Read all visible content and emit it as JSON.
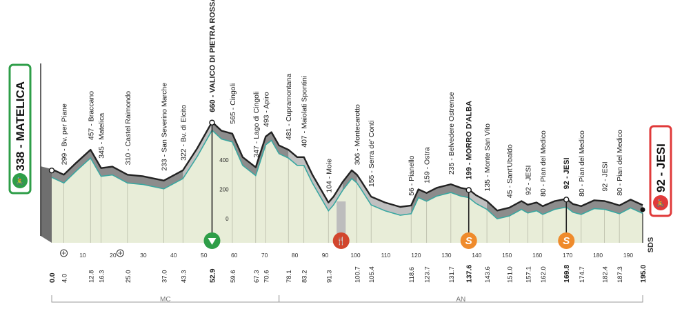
{
  "chart_data": {
    "type": "area",
    "start": {
      "altitude": "338",
      "name": "MATELICA",
      "label": "338 - MATELICA",
      "color": "#2e9e48"
    },
    "finish": {
      "altitude": "92",
      "name": "JESI",
      "label": "92 - JESI",
      "color": "#e03a3a"
    },
    "waypoints": [
      {
        "label": "299 - Bv. per Piane",
        "km": 4.0,
        "km_label": "4.0",
        "alt": 299,
        "bold": false
      },
      {
        "label": "457 - Braccano",
        "km": 12.8,
        "km_label": "12.8",
        "alt": 457,
        "bold": false
      },
      {
        "label": "345 - Matelica",
        "km": 16.3,
        "km_label": "16.3",
        "alt": 345,
        "bold": false
      },
      {
        "label": "310 - Castel Raimondo",
        "km": 25.0,
        "km_label": "25.0",
        "alt": 310,
        "bold": false
      },
      {
        "label": "233 - San Severino Marche",
        "km": 37.0,
        "km_label": "37.0",
        "alt": 233,
        "bold": false
      },
      {
        "label": "322 - Bv. di Elcito",
        "km": 43.3,
        "km_label": "43.3",
        "alt": 322,
        "bold": false
      },
      {
        "label": "660 - VALICO DI PIETRA ROSSA",
        "km": 52.9,
        "km_label": "52.9",
        "alt": 660,
        "bold": true
      },
      {
        "label": "565 - Cingoli",
        "km": 59.6,
        "km_label": "59.6",
        "alt": 565,
        "bold": false
      },
      {
        "label": "347 - Lago di Cingoli",
        "km": 67.3,
        "km_label": "67.3",
        "alt": 347,
        "bold": false
      },
      {
        "label": "493 - Apiro",
        "km": 70.6,
        "km_label": "70.6",
        "alt": 493,
        "bold": false
      },
      {
        "label": "481 - Cupramontana",
        "km": 78.1,
        "km_label": "78.1",
        "alt": 481,
        "bold": false
      },
      {
        "label": "407 - Maiolati Spontini",
        "km": 83.2,
        "km_label": "83.2",
        "alt": 407,
        "bold": false
      },
      {
        "label": "104 - Moie",
        "km": 91.3,
        "km_label": "91.3",
        "alt": 104,
        "bold": false
      },
      {
        "label": "306 - Montecarotto",
        "km": 100.7,
        "km_label": "100.7",
        "alt": 306,
        "bold": false
      },
      {
        "label": "155 - Serra de' Conti",
        "km": 105.4,
        "km_label": "105.4",
        "alt": 155,
        "bold": false
      },
      {
        "label": "56 - Pianello",
        "km": 118.6,
        "km_label": "118.6",
        "alt": 56,
        "bold": false
      },
      {
        "label": "159 - Ostra",
        "km": 123.7,
        "km_label": "123.7",
        "alt": 159,
        "bold": false
      },
      {
        "label": "235 - Belvedere Ostrense",
        "km": 131.7,
        "km_label": "131.7",
        "alt": 235,
        "bold": false
      },
      {
        "label": "199 - MORRO D'ALBA",
        "km": 137.6,
        "km_label": "137.6",
        "alt": 199,
        "bold": true
      },
      {
        "label": "135 - Monte San Vito",
        "km": 143.6,
        "km_label": "143.6",
        "alt": 135,
        "bold": false
      },
      {
        "label": "45 - Sant'Ubaldo",
        "km": 151.0,
        "km_label": "151.0",
        "alt": 45,
        "bold": false
      },
      {
        "label": "92 - JESI",
        "km": 157.1,
        "km_label": "157.1",
        "alt": 92,
        "bold": false
      },
      {
        "label": "80 - Pian del Medico",
        "km": 162.0,
        "km_label": "162.0",
        "alt": 80,
        "bold": false
      },
      {
        "label": "92 - JESI",
        "km": 169.8,
        "km_label": "169.8",
        "alt": 92,
        "bold": true
      },
      {
        "label": "80 - Pian del Medico",
        "km": 174.7,
        "km_label": "174.7",
        "alt": 80,
        "bold": false
      },
      {
        "label": "92 - JESI",
        "km": 182.4,
        "km_label": "182.4",
        "alt": 92,
        "bold": false
      },
      {
        "label": "80 - Pian del Medico",
        "km": 187.3,
        "km_label": "187.3",
        "alt": 80,
        "bold": false
      }
    ],
    "x_axis": {
      "min": 0,
      "max": 195,
      "ticks": [
        10,
        20,
        30,
        40,
        50,
        60,
        70,
        80,
        90,
        100,
        110,
        120,
        130,
        140,
        150,
        160,
        170,
        180,
        190
      ]
    },
    "km_start_label": "0.0",
    "km_finish_label": "195.0",
    "bold_km_labels": [
      "0.0",
      "52.9",
      "137.6",
      "169.8",
      "195.0"
    ],
    "y_axis": {
      "min": -350,
      "max": 700,
      "ticks": [
        0,
        200,
        400
      ]
    },
    "profile": [
      {
        "km": 0,
        "alt": 338
      },
      {
        "km": 4,
        "alt": 300
      },
      {
        "km": 8,
        "alt": 380
      },
      {
        "km": 12.8,
        "alt": 470
      },
      {
        "km": 16.3,
        "alt": 345
      },
      {
        "km": 20,
        "alt": 355
      },
      {
        "km": 25,
        "alt": 300
      },
      {
        "km": 30,
        "alt": 290
      },
      {
        "km": 37,
        "alt": 260
      },
      {
        "km": 43.3,
        "alt": 330
      },
      {
        "km": 48,
        "alt": 480
      },
      {
        "km": 52.9,
        "alt": 660
      },
      {
        "km": 56,
        "alt": 600
      },
      {
        "km": 59.6,
        "alt": 580
      },
      {
        "km": 63,
        "alt": 420
      },
      {
        "km": 67.3,
        "alt": 350
      },
      {
        "km": 70.6,
        "alt": 560
      },
      {
        "km": 72.5,
        "alt": 590
      },
      {
        "km": 75,
        "alt": 500
      },
      {
        "km": 78.1,
        "alt": 470
      },
      {
        "km": 81,
        "alt": 420
      },
      {
        "km": 83.2,
        "alt": 420
      },
      {
        "km": 86,
        "alt": 300
      },
      {
        "km": 91.3,
        "alt": 110
      },
      {
        "km": 93,
        "alt": 150
      },
      {
        "km": 96,
        "alt": 250
      },
      {
        "km": 99,
        "alt": 330
      },
      {
        "km": 100.7,
        "alt": 300
      },
      {
        "km": 102,
        "alt": 260
      },
      {
        "km": 105.4,
        "alt": 150
      },
      {
        "km": 110,
        "alt": 110
      },
      {
        "km": 115,
        "alt": 80
      },
      {
        "km": 118.6,
        "alt": 90
      },
      {
        "km": 121,
        "alt": 200
      },
      {
        "km": 123.7,
        "alt": 175
      },
      {
        "km": 127,
        "alt": 210
      },
      {
        "km": 131.7,
        "alt": 235
      },
      {
        "km": 135,
        "alt": 210
      },
      {
        "km": 137.6,
        "alt": 200
      },
      {
        "km": 140,
        "alt": 160
      },
      {
        "km": 143.6,
        "alt": 120
      },
      {
        "km": 147,
        "alt": 55
      },
      {
        "km": 151,
        "alt": 75
      },
      {
        "km": 155,
        "alt": 120
      },
      {
        "km": 157.1,
        "alt": 95
      },
      {
        "km": 160,
        "alt": 110
      },
      {
        "km": 162,
        "alt": 85
      },
      {
        "km": 166,
        "alt": 120
      },
      {
        "km": 169.8,
        "alt": 135
      },
      {
        "km": 172,
        "alt": 100
      },
      {
        "km": 174.7,
        "alt": 85
      },
      {
        "km": 179,
        "alt": 125
      },
      {
        "km": 182.4,
        "alt": 120
      },
      {
        "km": 185,
        "alt": 105
      },
      {
        "km": 187.3,
        "alt": 90
      },
      {
        "km": 191,
        "alt": 130
      },
      {
        "km": 195,
        "alt": 92
      }
    ],
    "climb_segments": [
      {
        "from": 0,
        "to": 43.3
      },
      {
        "from": 52.9,
        "to": 78.1
      },
      {
        "from": 96,
        "to": 100.7
      },
      {
        "from": 118.6,
        "to": 137.6
      },
      {
        "from": 143.6,
        "to": 195
      }
    ],
    "feed_zone": {
      "from": 94,
      "to": 97
    },
    "markers": [
      {
        "type": "gpm",
        "km": 52.9,
        "color": "#2e9e48"
      },
      {
        "type": "feed",
        "km": 95.5,
        "color": "#d2462d"
      },
      {
        "type": "sprint",
        "km": 137.6,
        "color": "#ef8b2c"
      },
      {
        "type": "sprint",
        "km": 169.8,
        "color": "#ef8b2c"
      }
    ],
    "provinces": [
      {
        "label": "MC",
        "from": 0,
        "to": 75
      },
      {
        "label": "AN",
        "from": 75,
        "to": 195
      }
    ],
    "logo_text": "SDS",
    "colors": {
      "grey_fill": "#8c8c8c",
      "dark_line": "#222222",
      "teal_line": "#3aa8a1",
      "light_fill": "#e8edd8"
    }
  }
}
